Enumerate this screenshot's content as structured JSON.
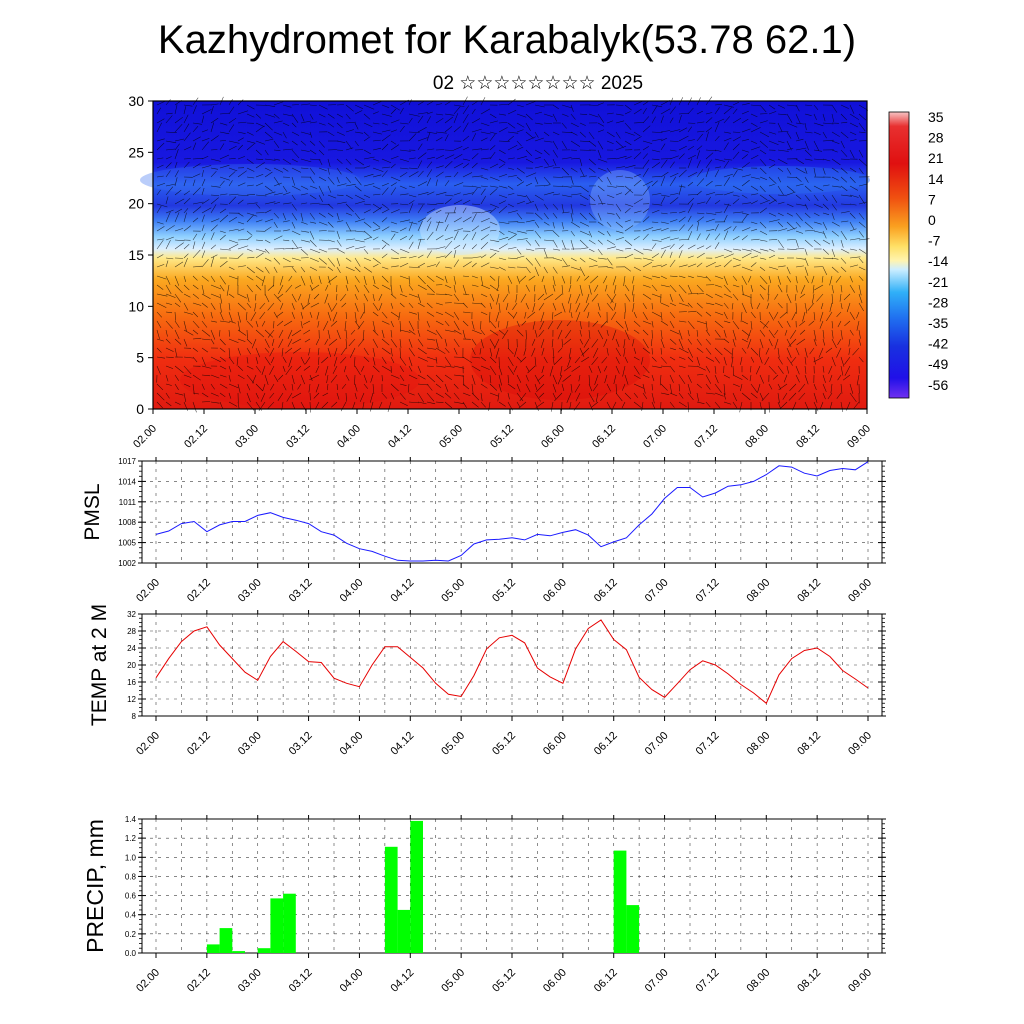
{
  "title": "Kazhydromet for Karabalyk(53.78 62.1)",
  "subtitle": "02 ☆☆☆☆☆☆☆☆ 2025",
  "colors": {
    "pmsl_line": "#1a1aff",
    "temp_line": "#e60000",
    "precip_bar": "#00ff00"
  },
  "chart_data": [
    {
      "type": "heatmap",
      "ylim": [
        0,
        30
      ],
      "y_ticks": [
        "0",
        "5",
        "10",
        "15",
        "20",
        "25",
        "30"
      ],
      "x_ticks": [
        "02.00",
        "02.12",
        "03.00",
        "03.12",
        "04.00",
        "04.12",
        "05.00",
        "05.12",
        "06.00",
        "06.12",
        "07.00",
        "07.12",
        "08.00",
        "08.12",
        "09.00"
      ],
      "colorbar_labels": [
        "35",
        "28",
        "21",
        "14",
        "7",
        "0",
        "-7",
        "-14",
        "-21",
        "-28",
        "-35",
        "-42",
        "-49",
        "-56"
      ],
      "value_range": [
        -63,
        35
      ],
      "wind_barbs": true
    },
    {
      "type": "line",
      "ylabel": "PMSL",
      "ylim": [
        1002,
        1017
      ],
      "y_ticks": [
        "1002",
        "1005",
        "1008",
        "1011",
        "1014",
        "1017"
      ],
      "x_ticks": [
        "02.00",
        "02.12",
        "03.00",
        "03.12",
        "04.00",
        "04.12",
        "05.00",
        "05.12",
        "06.00",
        "06.12",
        "07.00",
        "07.12",
        "08.00",
        "08.12",
        "09.00"
      ],
      "x_hours": [
        0,
        3,
        6,
        9,
        12,
        15,
        18,
        21,
        24,
        27,
        30,
        33,
        36,
        39,
        42,
        45,
        48,
        51,
        54,
        57,
        60,
        63,
        66,
        69,
        72,
        75,
        78,
        81,
        84,
        87,
        90,
        93,
        96,
        99,
        102,
        105,
        108,
        111,
        114,
        117,
        120,
        123,
        126,
        129,
        132,
        135,
        138,
        141,
        144,
        147,
        150,
        153,
        156,
        159,
        162,
        165,
        168
      ],
      "values": [
        1006.2,
        1006.7,
        1007.8,
        1008.1,
        1006.6,
        1007.6,
        1008.1,
        1008.1,
        1009.0,
        1009.4,
        1008.7,
        1008.3,
        1007.8,
        1006.6,
        1006.1,
        1004.9,
        1004.1,
        1003.7,
        1003.0,
        1002.4,
        1002.3,
        1002.3,
        1002.4,
        1002.3,
        1003.1,
        1004.8,
        1005.4,
        1005.5,
        1005.7,
        1005.4,
        1006.2,
        1006.0,
        1006.5,
        1006.9,
        1006.1,
        1004.4,
        1005.1,
        1005.7,
        1007.6,
        1009.2,
        1011.5,
        1013.1,
        1013.1,
        1011.7,
        1012.3,
        1013.3,
        1013.5,
        1014.0,
        1015.0,
        1016.3,
        1016.1,
        1015.2,
        1014.8,
        1015.6,
        1015.9,
        1015.7,
        1016.9
      ],
      "grid": true
    },
    {
      "type": "line",
      "ylabel": "TEMP at 2 M",
      "ylim": [
        8,
        32
      ],
      "y_ticks": [
        "8",
        "12",
        "16",
        "20",
        "24",
        "28",
        "32"
      ],
      "x_ticks": [
        "02.00",
        "02.12",
        "03.00",
        "03.12",
        "04.00",
        "04.12",
        "05.00",
        "05.12",
        "06.00",
        "06.12",
        "07.00",
        "07.12",
        "08.00",
        "08.12",
        "09.00"
      ],
      "x_hours": [
        0,
        3,
        6,
        9,
        12,
        15,
        18,
        21,
        24,
        27,
        30,
        33,
        36,
        39,
        42,
        45,
        48,
        51,
        54,
        57,
        60,
        63,
        66,
        69,
        72,
        75,
        78,
        81,
        84,
        87,
        90,
        93,
        96,
        99,
        102,
        105,
        108,
        111,
        114,
        117,
        120,
        123,
        126,
        129,
        132,
        135,
        138,
        141,
        144,
        147,
        150,
        153,
        156,
        159,
        162,
        165,
        168
      ],
      "values": [
        17.0,
        21.5,
        25.5,
        28.0,
        29.0,
        24.7,
        21.5,
        18.3,
        16.4,
        22.0,
        25.5,
        23.2,
        20.8,
        20.6,
        16.9,
        15.7,
        14.9,
        20.0,
        24.3,
        24.3,
        21.8,
        19.3,
        15.7,
        13.1,
        12.6,
        17.5,
        23.8,
        26.4,
        27.0,
        25.2,
        19.3,
        17.2,
        15.7,
        23.8,
        28.6,
        30.6,
        26.0,
        23.6,
        17.1,
        14.2,
        12.4,
        15.6,
        18.9,
        21.0,
        20.0,
        17.9,
        15.4,
        13.4,
        11.0,
        17.7,
        21.5,
        23.4,
        24.0,
        22.0,
        18.7,
        16.7,
        14.6
      ],
      "grid": true
    },
    {
      "type": "bar",
      "ylabel": "PRECIP, mm",
      "ylim": [
        0,
        1.4
      ],
      "y_ticks": [
        "0.0",
        "0.2",
        "0.4",
        "0.6",
        "0.8",
        "1.0",
        "1.2",
        "1.4"
      ],
      "x_ticks": [
        "02.00",
        "02.12",
        "03.00",
        "03.12",
        "04.00",
        "04.12",
        "05.00",
        "05.12",
        "06.00",
        "06.12",
        "07.00",
        "07.12",
        "08.00",
        "08.12",
        "09.00"
      ],
      "bar_width_hours": 3,
      "bars": [
        {
          "start_hour": 12,
          "value": 0.09
        },
        {
          "start_hour": 15,
          "value": 0.26
        },
        {
          "start_hour": 18,
          "value": 0.02
        },
        {
          "start_hour": 24,
          "value": 0.05
        },
        {
          "start_hour": 27,
          "value": 0.57
        },
        {
          "start_hour": 30,
          "value": 0.62
        },
        {
          "start_hour": 54,
          "value": 1.11
        },
        {
          "start_hour": 57,
          "value": 0.45
        },
        {
          "start_hour": 60,
          "value": 1.38
        },
        {
          "start_hour": 108,
          "value": 1.07
        },
        {
          "start_hour": 111,
          "value": 0.5
        }
      ],
      "grid": true
    }
  ]
}
